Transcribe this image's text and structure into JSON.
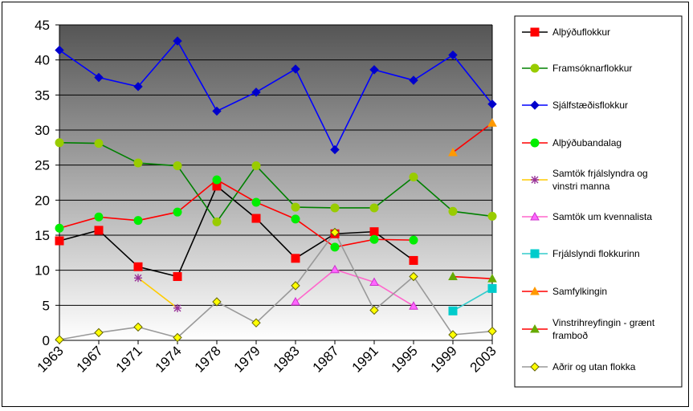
{
  "chart_data": {
    "type": "line",
    "categories": [
      "1963",
      "1967",
      "1971",
      "1974",
      "1978",
      "1979",
      "1983",
      "1987",
      "1991",
      "1995",
      "1999",
      "2003"
    ],
    "ylim": [
      0,
      45
    ],
    "yticks": [
      0,
      5,
      10,
      15,
      20,
      25,
      30,
      35,
      40,
      45
    ],
    "grid": true,
    "legend_position": "right",
    "series": [
      {
        "name": "Alþýðuflokkur",
        "color": "#000000",
        "marker_color": "#ff0000",
        "marker": "square",
        "values": [
          14.2,
          15.7,
          10.5,
          9.1,
          22.0,
          17.4,
          11.7,
          15.2,
          15.5,
          11.4,
          null,
          null
        ]
      },
      {
        "name": "Framsóknarflokkur",
        "color": "#008000",
        "marker_color": "#99cc00",
        "marker": "circle",
        "values": [
          28.2,
          28.1,
          25.3,
          24.9,
          16.9,
          24.9,
          19.0,
          18.9,
          18.9,
          23.3,
          18.4,
          17.7
        ]
      },
      {
        "name": "Sjálfstæðisflokkur",
        "color": "#0000ff",
        "marker_color": "#0000cc",
        "marker": "diamond",
        "values": [
          41.4,
          37.5,
          36.2,
          42.7,
          32.7,
          35.4,
          38.7,
          27.2,
          38.6,
          37.1,
          40.7,
          33.7
        ]
      },
      {
        "name": "Alþýðubandalag",
        "color": "#ff0000",
        "marker_color": "#00ee00",
        "marker": "circle",
        "values": [
          16.0,
          17.6,
          17.1,
          18.3,
          22.9,
          19.7,
          17.3,
          13.3,
          14.4,
          14.3,
          null,
          null
        ]
      },
      {
        "name": "Samtök frjálslyndra og vinstri manna",
        "color": "#ffcc00",
        "marker_color": "#993399",
        "marker": "star",
        "values": [
          null,
          null,
          8.9,
          4.6,
          null,
          null,
          null,
          null,
          null,
          null,
          null,
          null
        ]
      },
      {
        "name": "Samtök um kvennalista",
        "color": "#ff66cc",
        "marker_color": "#ff66ff",
        "marker": "triangle-up",
        "values": [
          null,
          null,
          null,
          null,
          null,
          null,
          5.5,
          10.1,
          8.3,
          4.9,
          null,
          null
        ]
      },
      {
        "name": "Frjálslyndi flokkurinn",
        "color": "#33cccc",
        "marker_color": "#00cccc",
        "marker": "square",
        "values": [
          null,
          null,
          null,
          null,
          null,
          null,
          null,
          null,
          null,
          null,
          4.2,
          7.4
        ]
      },
      {
        "name": "Samfylkingin",
        "color": "#ff0000",
        "marker_color": "#ff9900",
        "marker": "triangle-up",
        "values": [
          null,
          null,
          null,
          null,
          null,
          null,
          null,
          null,
          null,
          null,
          26.8,
          31.0
        ]
      },
      {
        "name": "Vinstrihreyfingin - grænt framboð",
        "color": "#ff0000",
        "marker_color": "#66aa00",
        "marker": "triangle-up",
        "values": [
          null,
          null,
          null,
          null,
          null,
          null,
          null,
          null,
          null,
          null,
          9.1,
          8.8
        ]
      },
      {
        "name": "Aðrir og utan flokka",
        "color": "#999999",
        "marker_color": "#ffff00",
        "marker": "diamond",
        "values": [
          0.1,
          1.1,
          1.9,
          0.4,
          5.5,
          2.5,
          7.8,
          15.4,
          4.3,
          9.1,
          0.8,
          1.3
        ]
      }
    ]
  }
}
